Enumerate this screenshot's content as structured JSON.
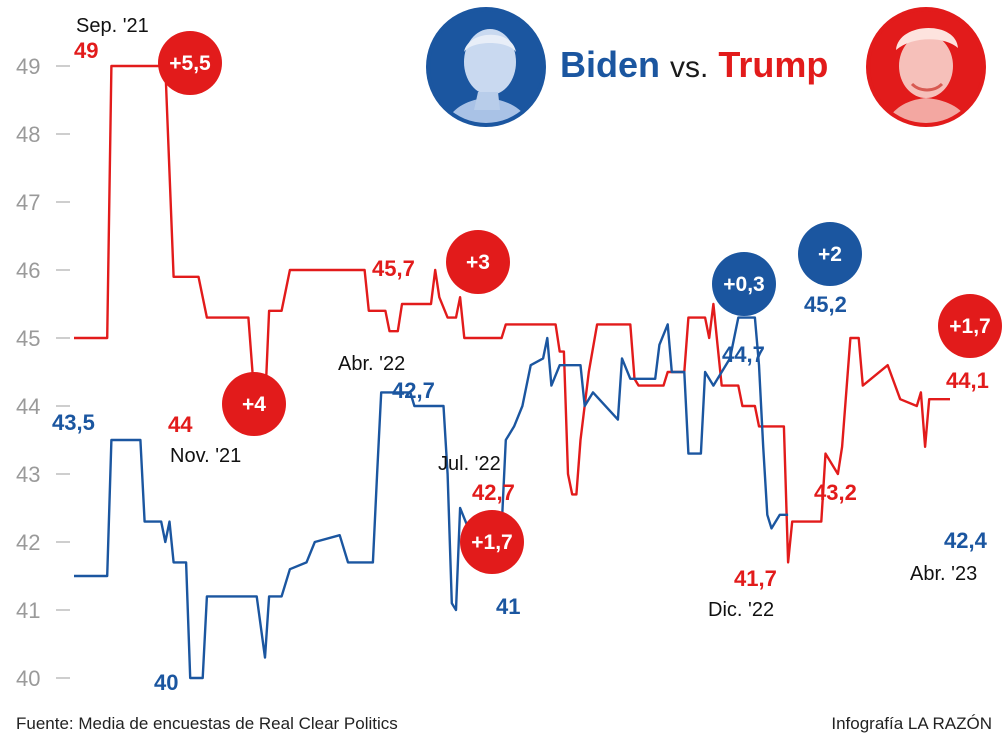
{
  "title": {
    "left": "Biden",
    "vs": "vs.",
    "right": "Trump"
  },
  "footer": {
    "source": "Fuente: Media de encuestas de Real Clear Politics",
    "credit": "Infografía LA RAZÓN"
  },
  "colors": {
    "biden": "#1b56a0",
    "trump": "#e21b1b",
    "grid": "#bdbdbd",
    "tick": "#9a9a9a"
  },
  "icons": {
    "biden": "biden-portrait-icon",
    "trump": "trump-portrait-icon"
  },
  "chart_data": {
    "type": "line",
    "title": "Biden vs. Trump",
    "xlabel": "",
    "ylabel": "",
    "ylim": [
      39.75,
      49.75
    ],
    "yticks": [
      40,
      41,
      42,
      43,
      44,
      45,
      46,
      47,
      48,
      49
    ],
    "grid": false,
    "series": [
      {
        "name": "Trump",
        "color": "#e21b1b",
        "points": [
          [
            0,
            45.0
          ],
          [
            8,
            45.0
          ],
          [
            9,
            49.0
          ],
          [
            22,
            49.0
          ],
          [
            24,
            45.9
          ],
          [
            30,
            45.9
          ],
          [
            32,
            45.3
          ],
          [
            42,
            45.3
          ],
          [
            43,
            44.5
          ],
          [
            44,
            44.0
          ],
          [
            46,
            44.0
          ],
          [
            47,
            45.4
          ],
          [
            50,
            45.4
          ],
          [
            52,
            46.0
          ],
          [
            70,
            46.0
          ],
          [
            71,
            45.4
          ],
          [
            75,
            45.4
          ],
          [
            76,
            45.1
          ],
          [
            78,
            45.1
          ],
          [
            79,
            45.5
          ],
          [
            86,
            45.5
          ],
          [
            87,
            46.0
          ],
          [
            88,
            45.6
          ],
          [
            90,
            45.3
          ],
          [
            92,
            45.3
          ],
          [
            93,
            45.6
          ],
          [
            94,
            45.0
          ],
          [
            103,
            45.0
          ],
          [
            104,
            45.2
          ],
          [
            116,
            45.2
          ],
          [
            117,
            44.8
          ],
          [
            118,
            44.8
          ],
          [
            119,
            43.0
          ],
          [
            120,
            42.7
          ],
          [
            121,
            42.7
          ],
          [
            122,
            43.5
          ],
          [
            124,
            44.5
          ],
          [
            126,
            45.2
          ],
          [
            134,
            45.2
          ],
          [
            135,
            44.4
          ],
          [
            136,
            44.3
          ],
          [
            142,
            44.3
          ],
          [
            143,
            44.5
          ],
          [
            147,
            44.5
          ],
          [
            148,
            45.3
          ],
          [
            152,
            45.3
          ],
          [
            153,
            45.0
          ],
          [
            154,
            45.5
          ],
          [
            155,
            44.9
          ],
          [
            156,
            44.3
          ],
          [
            160,
            44.3
          ],
          [
            161,
            44.0
          ],
          [
            164,
            44.0
          ],
          [
            165,
            43.7
          ],
          [
            171,
            43.7
          ],
          [
            172,
            41.7
          ],
          [
            173,
            42.3
          ],
          [
            180,
            42.3
          ],
          [
            181,
            43.3
          ],
          [
            184,
            43.0
          ],
          [
            185,
            43.4
          ],
          [
            187,
            45.0
          ],
          [
            189,
            45.0
          ],
          [
            190,
            44.3
          ],
          [
            196,
            44.6
          ],
          [
            199,
            44.1
          ],
          [
            203,
            44.0
          ],
          [
            204,
            44.2
          ],
          [
            205,
            43.4
          ],
          [
            206,
            44.1
          ],
          [
            211,
            44.1
          ]
        ]
      },
      {
        "name": "Biden",
        "color": "#1b56a0",
        "points": [
          [
            0,
            41.5
          ],
          [
            8,
            41.5
          ],
          [
            9,
            43.5
          ],
          [
            16,
            43.5
          ],
          [
            17,
            42.3
          ],
          [
            21,
            42.3
          ],
          [
            22,
            42.0
          ],
          [
            23,
            42.3
          ],
          [
            24,
            41.7
          ],
          [
            27,
            41.7
          ],
          [
            28,
            40.0
          ],
          [
            31,
            40.0
          ],
          [
            32,
            41.2
          ],
          [
            44,
            41.2
          ],
          [
            46,
            40.3
          ],
          [
            47,
            41.2
          ],
          [
            50,
            41.2
          ],
          [
            52,
            41.6
          ],
          [
            56,
            41.7
          ],
          [
            58,
            42.0
          ],
          [
            64,
            42.1
          ],
          [
            66,
            41.7
          ],
          [
            72,
            41.7
          ],
          [
            73,
            43.0
          ],
          [
            74,
            44.2
          ],
          [
            81,
            44.2
          ],
          [
            82,
            44.0
          ],
          [
            89,
            44.0
          ],
          [
            90,
            43.0
          ],
          [
            91,
            41.1
          ],
          [
            92,
            41.0
          ],
          [
            93,
            42.5
          ],
          [
            95,
            42.2
          ],
          [
            103,
            42.2
          ],
          [
            104,
            43.5
          ],
          [
            106,
            43.7
          ],
          [
            108,
            44.0
          ],
          [
            110,
            44.6
          ],
          [
            113,
            44.7
          ],
          [
            114,
            45.0
          ],
          [
            115,
            44.3
          ],
          [
            117,
            44.6
          ],
          [
            122,
            44.6
          ],
          [
            123,
            44.0
          ],
          [
            125,
            44.2
          ],
          [
            131,
            43.8
          ],
          [
            132,
            44.7
          ],
          [
            134,
            44.4
          ],
          [
            140,
            44.4
          ],
          [
            141,
            44.9
          ],
          [
            143,
            45.2
          ],
          [
            144,
            44.5
          ],
          [
            147,
            44.5
          ],
          [
            148,
            43.3
          ],
          [
            151,
            43.3
          ],
          [
            152,
            44.5
          ],
          [
            154,
            44.3
          ],
          [
            158,
            44.7
          ],
          [
            160,
            45.3
          ],
          [
            164,
            45.3
          ],
          [
            165,
            44.6
          ],
          [
            166,
            43.4
          ],
          [
            167,
            42.4
          ],
          [
            168,
            42.2
          ],
          [
            170,
            42.4
          ],
          [
            172,
            42.4
          ]
        ]
      }
    ],
    "annotations": [
      {
        "series": "Trump",
        "value": "49",
        "date": "Sep. '21",
        "badge": "+5,5"
      },
      {
        "series": "Trump",
        "value": "44",
        "date": "Nov. '21",
        "badge": "+4"
      },
      {
        "series": "Biden",
        "value": "43,5"
      },
      {
        "series": "Biden",
        "value": "40"
      },
      {
        "series": "Trump",
        "value": "45,7",
        "badge": "+3"
      },
      {
        "series": "Biden",
        "value": "42,7",
        "date": "Abr. '22"
      },
      {
        "series": "Trump",
        "value": "42,7",
        "date": "Jul. '22",
        "badge": "+1,7"
      },
      {
        "series": "Biden",
        "value": "41"
      },
      {
        "series": "Biden",
        "value": "44,7",
        "badge": "+0,3"
      },
      {
        "series": "Biden",
        "value": "45,2",
        "badge": "+2"
      },
      {
        "series": "Trump",
        "value": "41,7",
        "date": "Dic. '22"
      },
      {
        "series": "Trump",
        "value": "43,2"
      },
      {
        "series": "Trump",
        "value": "44,1",
        "badge": "+1,7"
      },
      {
        "series": "Biden",
        "value": "42,4",
        "date": "Abr. '23"
      }
    ]
  }
}
